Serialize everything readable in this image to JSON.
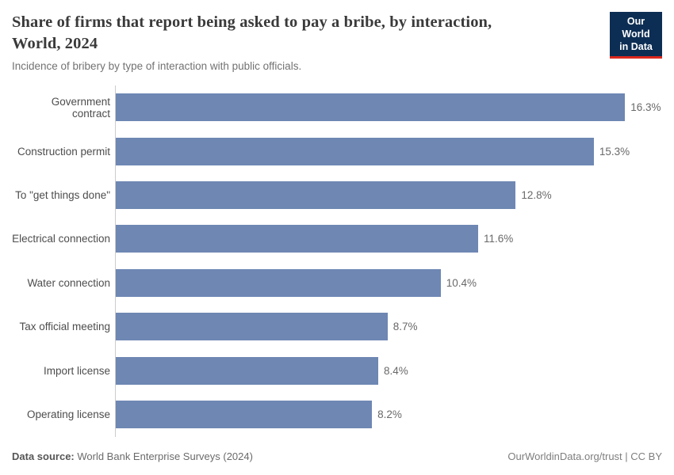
{
  "header": {
    "title_line1": "Share of firms that report being asked to pay a bribe, by interaction,",
    "title_line2": "World, 2024",
    "subtitle": "Incidence of bribery by type of interaction with public officials.",
    "logo": {
      "line1": "Our World",
      "line2": "in Data"
    }
  },
  "chart_data": {
    "type": "bar",
    "orientation": "horizontal",
    "title": "Share of firms that report being asked to pay a bribe, by interaction, World, 2024",
    "subtitle": "Incidence of bribery by type of interaction with public officials.",
    "categories": [
      "Government contract",
      "Construction permit",
      "To \"get things done\"",
      "Electrical connection",
      "Water connection",
      "Tax official meeting",
      "Import license",
      "Operating license"
    ],
    "values": [
      16.3,
      15.3,
      12.8,
      11.6,
      10.4,
      8.7,
      8.4,
      8.2
    ],
    "value_labels": [
      "16.3%",
      "15.3%",
      "12.8%",
      "11.6%",
      "10.4%",
      "8.7%",
      "8.4%",
      "8.2%"
    ],
    "unit": "%",
    "xlim": [
      0,
      16.3
    ],
    "grid": false,
    "legend": "none",
    "bar_color": "#6e87b3",
    "axis_line_color": "#cccccc"
  },
  "footer": {
    "data_source_label": "Data source:",
    "data_source_value": " World Bank Enterprise Surveys (2024)",
    "attribution": "OurWorldinData.org/trust | CC BY"
  }
}
